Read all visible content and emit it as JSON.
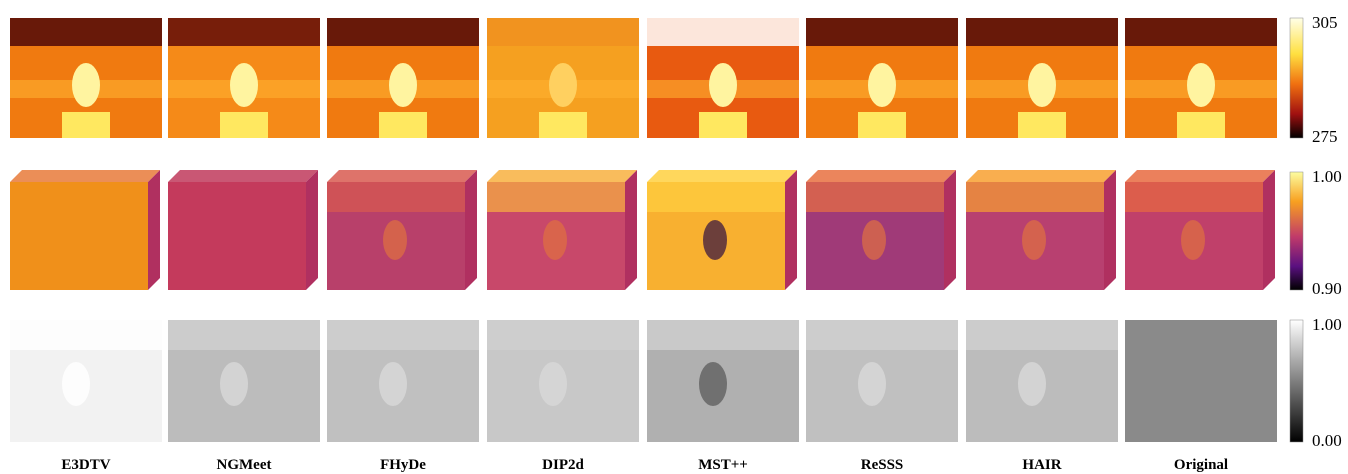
{
  "columns": [
    "E3DTV",
    "NGMeet",
    "FHyDe",
    "DIP2d",
    "MST++",
    "ReSSS",
    "HAIR",
    "Original"
  ],
  "colorbars": [
    {
      "max": "305",
      "min": "275"
    },
    {
      "max": "1.00",
      "min": "0.90"
    },
    {
      "max": "1.00",
      "min": "0.00"
    }
  ]
}
